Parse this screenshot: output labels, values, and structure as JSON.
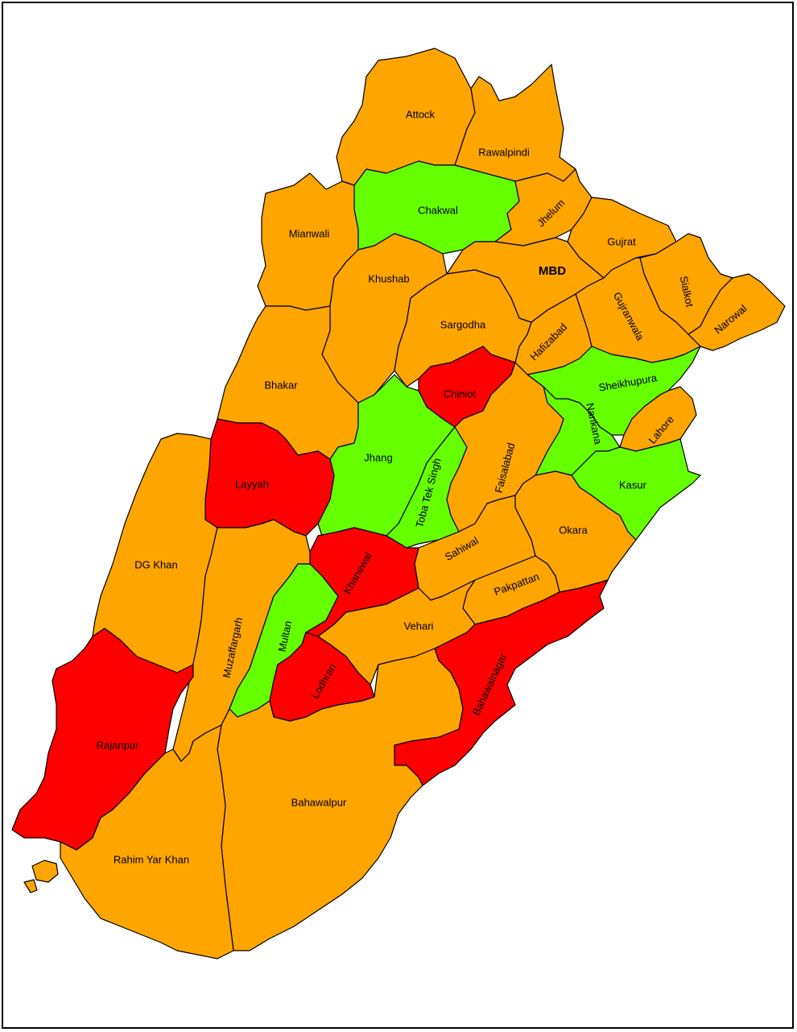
{
  "colors": {
    "orange": "#FFA500",
    "red": "#FF0000",
    "green": "#66FF00"
  },
  "districts": [
    {
      "id": "attock",
      "name": "Attock",
      "color": "orange"
    },
    {
      "id": "rawalpindi",
      "name": "Rawalpindi",
      "color": "orange"
    },
    {
      "id": "chakwal",
      "name": "Chakwal",
      "color": "green"
    },
    {
      "id": "jhelum",
      "name": "Jhelum",
      "color": "orange"
    },
    {
      "id": "mianwali",
      "name": "Mianwali",
      "color": "orange"
    },
    {
      "id": "gujrat",
      "name": "Gujrat",
      "color": "orange"
    },
    {
      "id": "khushab",
      "name": "Khushab",
      "color": "orange"
    },
    {
      "id": "mbd",
      "name": "MBD",
      "color": "orange"
    },
    {
      "id": "sialkot",
      "name": "Sialkot",
      "color": "orange"
    },
    {
      "id": "narowal",
      "name": "Narowal",
      "color": "orange"
    },
    {
      "id": "gujranwala",
      "name": "Gujranwala",
      "color": "orange"
    },
    {
      "id": "hafizabad",
      "name": "Hafizabad",
      "color": "orange"
    },
    {
      "id": "sargodha",
      "name": "Sargodha",
      "color": "orange"
    },
    {
      "id": "bhakar",
      "name": "Bhakar",
      "color": "orange"
    },
    {
      "id": "chiniot",
      "name": "Chiniot",
      "color": "red"
    },
    {
      "id": "sheikhupura",
      "name": "Sheikhupura",
      "color": "green"
    },
    {
      "id": "nankana",
      "name": "Nankana",
      "color": "green"
    },
    {
      "id": "lahore",
      "name": "Lahore",
      "color": "orange"
    },
    {
      "id": "jhang",
      "name": "Jhang",
      "color": "green"
    },
    {
      "id": "faisalabad",
      "name": "Faisalabad",
      "color": "orange"
    },
    {
      "id": "tobateksingh",
      "name": "Toba Tek Singh",
      "color": "green"
    },
    {
      "id": "layyah",
      "name": "Layyah",
      "color": "red"
    },
    {
      "id": "kasur",
      "name": "Kasur",
      "color": "green"
    },
    {
      "id": "okara",
      "name": "Okara",
      "color": "orange"
    },
    {
      "id": "sahiwal",
      "name": "Sahiwal",
      "color": "orange"
    },
    {
      "id": "khanewal",
      "name": "Khanewal",
      "color": "red"
    },
    {
      "id": "dgkhan",
      "name": "DG Khan",
      "color": "orange"
    },
    {
      "id": "pakpattan",
      "name": "Pakpattan",
      "color": "orange"
    },
    {
      "id": "muzaffargarh",
      "name": "Muzaffargarh",
      "color": "orange"
    },
    {
      "id": "multan",
      "name": "Multan",
      "color": "green"
    },
    {
      "id": "vehari",
      "name": "Vehari",
      "color": "orange"
    },
    {
      "id": "bahawalnagar",
      "name": "Bahawalnagar",
      "color": "red"
    },
    {
      "id": "lodhran",
      "name": "Lodhran",
      "color": "red"
    },
    {
      "id": "rajanpur",
      "name": "Rajanpur",
      "color": "red"
    },
    {
      "id": "bahawalpur",
      "name": "Bahawalpur",
      "color": "orange"
    },
    {
      "id": "rahimyarkhan",
      "name": "Rahim Yar Khan",
      "color": "orange"
    }
  ]
}
